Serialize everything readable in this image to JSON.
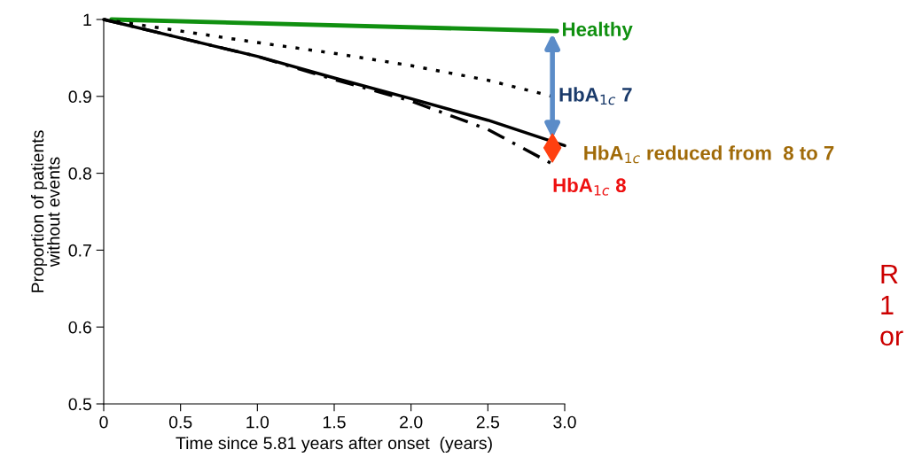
{
  "chart_data": {
    "type": "line",
    "xlabel": "Time since 5.81 years after onset  (years)",
    "ylabel": "Proportion of patients\nwithout events",
    "xlim": [
      0,
      3.0
    ],
    "ylim": [
      0.5,
      1.0
    ],
    "xticks": [
      {
        "value": 0,
        "label": "0"
      },
      {
        "value": 0.5,
        "label": "0.5"
      },
      {
        "value": 1.0,
        "label": "1.0"
      },
      {
        "value": 1.5,
        "label": "1.5"
      },
      {
        "value": 2.0,
        "label": "2.0"
      },
      {
        "value": 2.5,
        "label": "2.5"
      },
      {
        "value": 3.0,
        "label": "3.0"
      }
    ],
    "yticks": [
      {
        "value": 0.5,
        "label": "0.5"
      },
      {
        "value": 0.6,
        "label": "0.6"
      },
      {
        "value": 0.7,
        "label": "0.7"
      },
      {
        "value": 0.8,
        "label": "0.8"
      },
      {
        "value": 0.9,
        "label": "0.9"
      },
      {
        "value": 1.0,
        "label": "1"
      }
    ],
    "grid": false,
    "legend": false,
    "series": [
      {
        "name": "Healthy",
        "color": "#109010",
        "line_style": "solid",
        "x": [
          0.05,
          2.95
        ],
        "values": [
          1.0,
          0.985
        ]
      },
      {
        "name": "HbA$_{1c}$ 7",
        "color": "#000000",
        "line_style": "dotted",
        "x": [
          0,
          0.5,
          1.0,
          1.5,
          2.0,
          2.5,
          2.92
        ],
        "values": [
          1.0,
          0.985,
          0.97,
          0.956,
          0.94,
          0.921,
          0.9
        ]
      },
      {
        "name": "HbA$_{1c}$ reduced from  8 to 7",
        "color": "#000000",
        "line_style": "solid",
        "x": [
          0,
          0.5,
          1.0,
          1.5,
          2.0,
          2.5,
          3.0
        ],
        "values": [
          1.0,
          0.976,
          0.952,
          0.924,
          0.897,
          0.869,
          0.836
        ]
      },
      {
        "name": "HbA$_{1c}$ 8",
        "color": "#000000",
        "line_style": "dashed",
        "x": [
          0,
          0.5,
          1.0,
          1.5,
          2.0,
          2.5,
          2.92
        ],
        "values": [
          1.0,
          0.976,
          0.952,
          0.922,
          0.894,
          0.857,
          0.812
        ]
      },
      {
        "type": "scatter",
        "marker": "diamond",
        "color": "#ff4010",
        "x": [
          2.92
        ],
        "values": [
          0.833
        ]
      }
    ],
    "annotations": [
      "R",
      "1",
      "or"
    ]
  }
}
